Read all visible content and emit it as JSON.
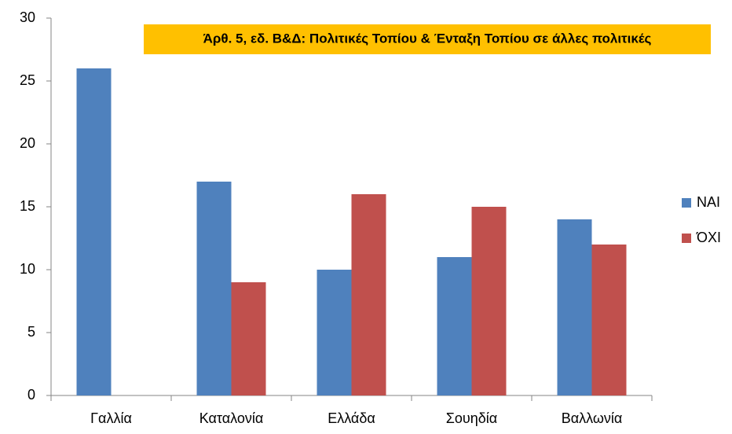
{
  "chart_data": {
    "type": "bar",
    "title": "Άρθ. 5, εδ. Β&Δ: Πολιτικές Τοπίου & Ένταξη Τοπίου σε άλλες πολιτικές",
    "categories": [
      "Γαλλία",
      "Καταλονία",
      "Ελλάδα",
      "Σουηδία",
      "Βαλλωνία"
    ],
    "series": [
      {
        "name": "ΝΑΙ",
        "color": "#4f81bd",
        "values": [
          26,
          17,
          10,
          11,
          14
        ]
      },
      {
        "name": "ΌΧΙ",
        "color": "#c0504d",
        "values": [
          0,
          9,
          16,
          15,
          12
        ]
      }
    ],
    "ylim": [
      0,
      30
    ],
    "yticks": [
      0,
      5,
      10,
      15,
      20,
      25,
      30
    ],
    "grid": false,
    "legend": "right"
  }
}
